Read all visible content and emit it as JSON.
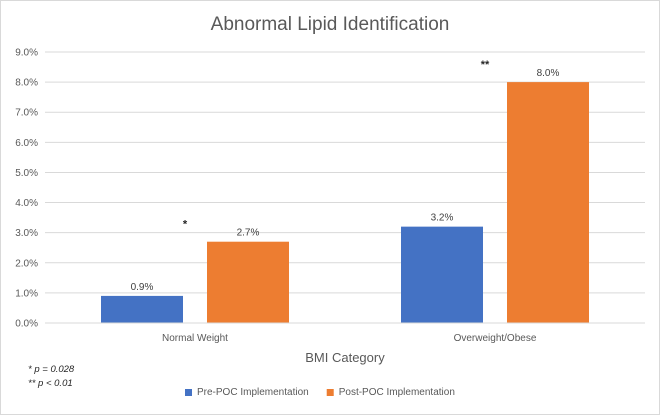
{
  "chart_data": {
    "type": "bar",
    "title": "Abnormal Lipid Identification",
    "xlabel": "BMI Category",
    "ylabel": "",
    "categories": [
      "Normal Weight",
      "Overweight/Obese"
    ],
    "series": [
      {
        "name": "Pre-POC Implementation",
        "values": [
          0.9,
          3.2
        ],
        "labels": [
          "0.9%",
          "3.2%"
        ],
        "color": "#4472C4"
      },
      {
        "name": "Post-POC Implementation",
        "values": [
          2.7,
          8.0
        ],
        "labels": [
          "2.7%",
          "8.0%"
        ],
        "color": "#ED7D31"
      }
    ],
    "ylim": [
      0,
      9
    ],
    "yticks": [
      "0.0%",
      "1.0%",
      "2.0%",
      "3.0%",
      "4.0%",
      "5.0%",
      "6.0%",
      "7.0%",
      "8.0%",
      "9.0%"
    ],
    "grid": true,
    "legend_position": "bottom",
    "significance_markers": [
      "*",
      "**"
    ],
    "notes": [
      "* p = 0.028",
      "** p < 0.01"
    ]
  }
}
